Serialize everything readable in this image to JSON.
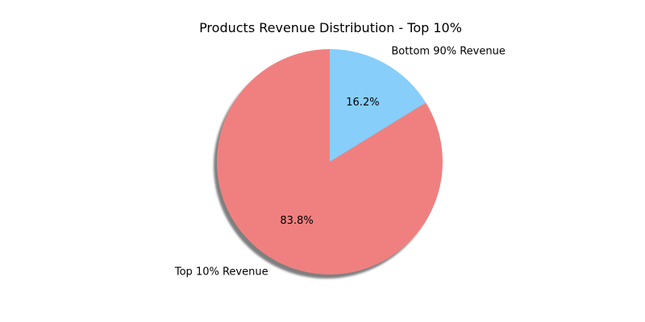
{
  "chart_data": {
    "type": "pie",
    "title": "Products Revenue Distribution - Top 10%",
    "start_angle_deg": 90,
    "shadow": true,
    "slices": [
      {
        "label": "Top 10% Revenue",
        "value": 83.8,
        "pct_label": "83.8%",
        "color": "#f08080"
      },
      {
        "label": "Bottom 90% Revenue",
        "value": 16.2,
        "pct_label": "16.2%",
        "color": "#87cefa"
      }
    ]
  }
}
